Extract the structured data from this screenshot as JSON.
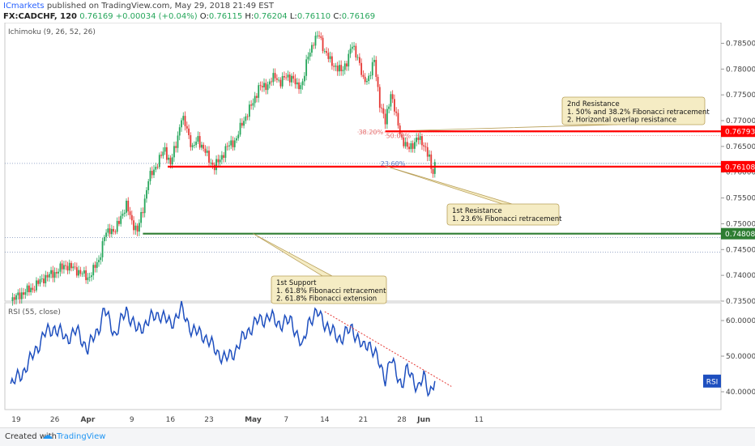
{
  "header": {
    "author": "ICmarkets",
    "published_text": "published on TradingView.com, May 29, 2018 21:49 EST",
    "symbol": "FX:CADCHF, 120",
    "last": "0.76169",
    "change": "+0.00034 (+0.04%)",
    "ohlc": {
      "o_label": "O:",
      "o": "0.76115",
      "h_label": "H:",
      "h": "0.76204",
      "l_label": "L:",
      "l": "0.76110",
      "c_label": "C:",
      "c": "0.76169"
    }
  },
  "footer": {
    "created_with": "Created with",
    "tv": "TradingView"
  },
  "colors": {
    "up": "#26a65b",
    "down": "#e53935",
    "resistance": "#ff0000",
    "support": "#2e7d32",
    "rsi": "#1e4fbf",
    "note_bg": "#f5ecc4",
    "note_border": "#b9a05a"
  },
  "chart_data": [
    {
      "type": "candlestick",
      "indicator_label": "Ichimoku (9, 26, 52, 26)",
      "ylim": [
        0.735,
        0.789
      ],
      "yticks": [
        "0.78500",
        "0.78000",
        "0.77500",
        "0.77000",
        "0.76500",
        "0.76000",
        "0.75500",
        "0.75000",
        "0.74500",
        "0.74000",
        "0.73500"
      ],
      "ytick_values": [
        0.785,
        0.78,
        0.775,
        0.77,
        0.765,
        0.76,
        0.755,
        0.75,
        0.745,
        0.74,
        0.735
      ],
      "x_ticks": [
        {
          "label": "19",
          "day": 0
        },
        {
          "label": "26",
          "day": 7
        },
        {
          "label": "Apr",
          "day": 13
        },
        {
          "label": "9",
          "day": 21
        },
        {
          "label": "16",
          "day": 28
        },
        {
          "label": "23",
          "day": 35
        },
        {
          "label": "May",
          "day": 43
        },
        {
          "label": "7",
          "day": 49
        },
        {
          "label": "14",
          "day": 56
        },
        {
          "label": "21",
          "day": 63
        },
        {
          "label": "28",
          "day": 70
        },
        {
          "label": "Jun",
          "day": 74
        },
        {
          "label": "11",
          "day": 84
        }
      ],
      "price_path": [
        [
          -1,
          0.735
        ],
        [
          1,
          0.7365
        ],
        [
          3,
          0.7375
        ],
        [
          5,
          0.7395
        ],
        [
          7,
          0.7405
        ],
        [
          9,
          0.742
        ],
        [
          11,
          0.741
        ],
        [
          13,
          0.7395
        ],
        [
          14,
          0.741
        ],
        [
          15,
          0.743
        ],
        [
          16,
          0.7475
        ],
        [
          17,
          0.749
        ],
        [
          18,
          0.7485
        ],
        [
          19,
          0.7515
        ],
        [
          20,
          0.7535
        ],
        [
          21,
          0.7505
        ],
        [
          22,
          0.7485
        ],
        [
          23,
          0.753
        ],
        [
          24,
          0.7585
        ],
        [
          25,
          0.7605
        ],
        [
          26,
          0.7625
        ],
        [
          27,
          0.7645
        ],
        [
          28,
          0.7615
        ],
        [
          29,
          0.7655
        ],
        [
          30,
          0.7705
        ],
        [
          31,
          0.7685
        ],
        [
          32,
          0.7645
        ],
        [
          33,
          0.7665
        ],
        [
          34,
          0.7645
        ],
        [
          35,
          0.7625
        ],
        [
          36,
          0.761
        ],
        [
          37,
          0.7625
        ],
        [
          38,
          0.7645
        ],
        [
          39,
          0.7655
        ],
        [
          40,
          0.7665
        ],
        [
          41,
          0.7695
        ],
        [
          42,
          0.7715
        ],
        [
          43,
          0.7735
        ],
        [
          44,
          0.7765
        ],
        [
          45,
          0.7765
        ],
        [
          46,
          0.7775
        ],
        [
          47,
          0.7785
        ],
        [
          48,
          0.7775
        ],
        [
          49,
          0.7785
        ],
        [
          50,
          0.7785
        ],
        [
          51,
          0.7765
        ],
        [
          52,
          0.7775
        ],
        [
          53,
          0.7825
        ],
        [
          54,
          0.7855
        ],
        [
          55,
          0.7865
        ],
        [
          56,
          0.7835
        ],
        [
          57,
          0.7815
        ],
        [
          58,
          0.7805
        ],
        [
          59,
          0.7795
        ],
        [
          60,
          0.7815
        ],
        [
          61,
          0.7845
        ],
        [
          62,
          0.7825
        ],
        [
          63,
          0.7775
        ],
        [
          64,
          0.7785
        ],
        [
          65,
          0.7815
        ],
        [
          66,
          0.7735
        ],
        [
          67,
          0.7695
        ],
        [
          68,
          0.7755
        ],
        [
          69,
          0.7705
        ],
        [
          70,
          0.7665
        ],
        [
          71,
          0.7645
        ],
        [
          72,
          0.7655
        ],
        [
          73,
          0.7665
        ],
        [
          74,
          0.7655
        ],
        [
          75,
          0.7625
        ],
        [
          75.5,
          0.7595
        ],
        [
          76,
          0.7617
        ]
      ],
      "levels": [
        {
          "value": 0.76793,
          "label": "0.76793",
          "kind": "resistance"
        },
        {
          "value": 0.76108,
          "label": "0.76108",
          "kind": "resistance"
        },
        {
          "value": 0.74808,
          "label": "0.74808",
          "kind": "support"
        }
      ],
      "fib_levels": [
        {
          "label": "38.20%",
          "value": 0.7678
        },
        {
          "label": "50.00%",
          "value": 0.7671
        },
        {
          "label": "23.60%",
          "value": 0.7617
        }
      ],
      "dotted_levels": [
        0.7617,
        0.7473,
        0.7445
      ],
      "annotations": [
        {
          "title": "2nd Resistance",
          "lines": [
            "1. 50% and 38.2% Fibonacci retracement",
            "2. Horizontal overlap resistance"
          ],
          "anchor": [
            72.5,
            0.7681
          ]
        },
        {
          "title": "1st Resistance",
          "lines": [
            "1. 23.6% Fibonacci retracement"
          ],
          "anchor": [
            67,
            0.7612
          ]
        },
        {
          "title": "1st Support",
          "lines": [
            "1. 61.8% Fibonacci retracement",
            "2. 61.8% Fibonacci extension"
          ],
          "anchor": [
            43,
            0.7481
          ]
        }
      ]
    },
    {
      "type": "line",
      "indicator_label": "RSI (55, close)",
      "ylim": [
        35,
        65
      ],
      "yticks": [
        "60.0000",
        "50.0000",
        "40.0000"
      ],
      "ytick_values": [
        60,
        50,
        40
      ],
      "current_label": "RSI",
      "series": [
        {
          "values": [
            [
              -1,
              42
            ],
            [
              1,
              45
            ],
            [
              3,
              50
            ],
            [
              5,
              56
            ],
            [
              7,
              58
            ],
            [
              9,
              55
            ],
            [
              11,
              57
            ],
            [
              13,
              52
            ],
            [
              15,
              58
            ],
            [
              16,
              63
            ],
            [
              18,
              56
            ],
            [
              20,
              63
            ],
            [
              22,
              57
            ],
            [
              24,
              60
            ],
            [
              26,
              62
            ],
            [
              28,
              59
            ],
            [
              30,
              63
            ],
            [
              32,
              57
            ],
            [
              34,
              56
            ],
            [
              36,
              52
            ],
            [
              38,
              49
            ],
            [
              40,
              52
            ],
            [
              42,
              57
            ],
            [
              44,
              60
            ],
            [
              46,
              61
            ],
            [
              48,
              59
            ],
            [
              50,
              60
            ],
            [
              52,
              52
            ],
            [
              53,
              60
            ],
            [
              55,
              62
            ],
            [
              57,
              57
            ],
            [
              59,
              55
            ],
            [
              61,
              58
            ],
            [
              63,
              52
            ],
            [
              64,
              54
            ],
            [
              65,
              51
            ],
            [
              67,
              44
            ],
            [
              68,
              49
            ],
            [
              70,
              42
            ],
            [
              71,
              46
            ],
            [
              72,
              44
            ],
            [
              73,
              41
            ],
            [
              74,
              44
            ],
            [
              75,
              40
            ],
            [
              76,
              43
            ]
          ]
        }
      ],
      "trendline": [
        [
          56,
          62.5
        ],
        [
          79,
          41.5
        ]
      ]
    }
  ]
}
